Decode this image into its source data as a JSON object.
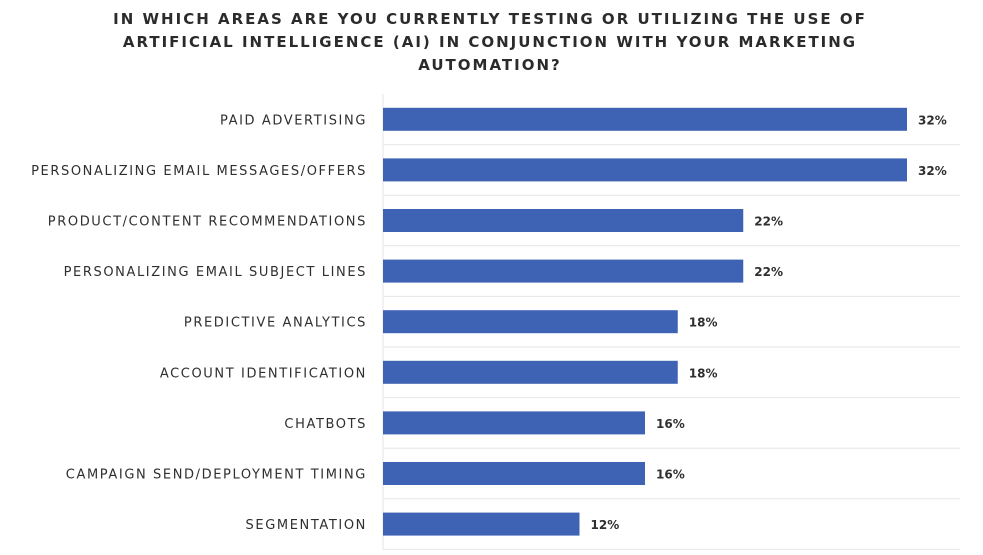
{
  "chart_data": {
    "type": "bar",
    "orientation": "horizontal",
    "title": "IN WHICH AREAS ARE YOU CURRENTLY TESTING OR UTILIZING THE USE OF ARTIFICIAL INTELLIGENCE (AI) IN CONJUNCTION WITH YOUR MARKETING AUTOMATION?",
    "categories": [
      "PAID ADVERTISING",
      "PERSONALIZING EMAIL MESSAGES/OFFERS",
      "PRODUCT/CONTENT RECOMMENDATIONS",
      "PERSONALIZING EMAIL SUBJECT LINES",
      "PREDICTIVE ANALYTICS",
      "ACCOUNT IDENTIFICATION",
      "CHATBOTS",
      "CAMPAIGN SEND/DEPLOYMENT TIMING",
      "SEGMENTATION"
    ],
    "values": [
      32,
      32,
      22,
      22,
      18,
      18,
      16,
      16,
      12
    ],
    "value_labels": [
      "32%",
      "32%",
      "22%",
      "22%",
      "18%",
      "18%",
      "16%",
      "16%",
      "12%"
    ],
    "xlim": [
      0,
      34
    ],
    "grid": true,
    "colors": {
      "bar": "#3f63b4"
    }
  }
}
